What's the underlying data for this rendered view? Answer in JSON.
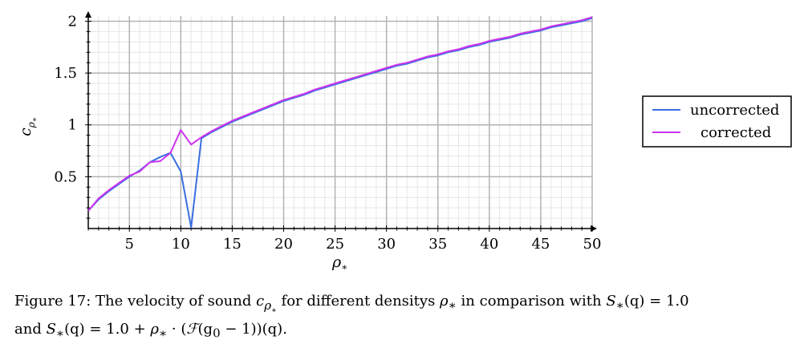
{
  "chart_data": {
    "type": "line",
    "xlabel_symbol": "ρ",
    "xlabel_sub": "∗",
    "ylabel_symbol": "c",
    "ylabel_sub1": "ρ",
    "ylabel_sub2": "∗",
    "xlim": [
      1,
      50
    ],
    "ylim": [
      0,
      2.05
    ],
    "xticks": [
      5,
      10,
      15,
      20,
      25,
      30,
      35,
      40,
      45,
      50
    ],
    "xtick_labels": [
      "5",
      "10",
      "15",
      "20",
      "25",
      "30",
      "35",
      "40",
      "45",
      "50"
    ],
    "yticks": [
      0.5,
      1,
      1.5,
      2
    ],
    "ytick_labels": [
      "0.5",
      "1",
      "1.5",
      "2"
    ],
    "grid": true,
    "legend_position": "right",
    "series": [
      {
        "name": "uncorrected",
        "color": "#3a6fe0",
        "x": [
          1,
          2,
          3,
          4,
          5,
          6,
          7,
          8,
          9,
          10,
          11,
          12,
          13,
          14,
          15,
          16,
          17,
          18,
          19,
          20,
          21,
          22,
          23,
          24,
          25,
          26,
          27,
          28,
          29,
          30,
          31,
          32,
          33,
          34,
          35,
          36,
          37,
          38,
          39,
          40,
          41,
          42,
          43,
          44,
          45,
          46,
          47,
          48,
          49,
          50
        ],
        "y": [
          0.17,
          0.28,
          0.36,
          0.43,
          0.5,
          0.56,
          0.64,
          0.69,
          0.73,
          0.55,
          0.01,
          0.87,
          0.93,
          0.98,
          1.03,
          1.07,
          1.11,
          1.15,
          1.19,
          1.23,
          1.26,
          1.29,
          1.33,
          1.36,
          1.39,
          1.42,
          1.45,
          1.48,
          1.51,
          1.54,
          1.57,
          1.59,
          1.62,
          1.65,
          1.67,
          1.7,
          1.72,
          1.75,
          1.77,
          1.8,
          1.82,
          1.84,
          1.87,
          1.89,
          1.91,
          1.94,
          1.96,
          1.98,
          2.0,
          2.03
        ]
      },
      {
        "name": "corrected",
        "color": "#cc33ee",
        "x": [
          1,
          2,
          3,
          4,
          5,
          6,
          7,
          8,
          9,
          10,
          11,
          12,
          13,
          14,
          15,
          16,
          17,
          18,
          19,
          20,
          21,
          22,
          23,
          24,
          25,
          26,
          27,
          28,
          29,
          30,
          31,
          32,
          33,
          34,
          35,
          36,
          37,
          38,
          39,
          40,
          41,
          42,
          43,
          44,
          45,
          46,
          47,
          48,
          49,
          50
        ],
        "y": [
          0.17,
          0.29,
          0.37,
          0.44,
          0.51,
          0.55,
          0.64,
          0.65,
          0.73,
          0.95,
          0.81,
          0.88,
          0.94,
          0.99,
          1.04,
          1.08,
          1.12,
          1.16,
          1.2,
          1.24,
          1.27,
          1.3,
          1.34,
          1.37,
          1.4,
          1.43,
          1.46,
          1.49,
          1.52,
          1.55,
          1.58,
          1.6,
          1.63,
          1.66,
          1.68,
          1.71,
          1.73,
          1.76,
          1.78,
          1.81,
          1.83,
          1.85,
          1.88,
          1.9,
          1.92,
          1.95,
          1.97,
          1.99,
          2.01,
          2.04
        ]
      }
    ]
  },
  "caption": {
    "line1_prefix": "Figure 17: The velocity of sound ",
    "line1_c": "c",
    "line1_c_sub": "ρ",
    "line1_c_subsub": "∗",
    "line1_mid": " for different densitys ",
    "line1_rho": "ρ",
    "line1_rho_sub": "∗",
    "line1_mid2": " in comparison with ",
    "line1_S": "S",
    "line1_S_sub": "∗",
    "line1_eq": "(q) = 1.0",
    "line2_prefix": "and ",
    "line2_S": "S",
    "line2_S_sub": "∗",
    "line2_eq1": "(q) = 1.0 + ",
    "line2_rho": "ρ",
    "line2_rho_sub": "∗",
    "line2_eq2": " · (",
    "line2_F": "ℱ",
    "line2_eq3": "(g",
    "line2_g_sub": "0",
    "line2_eq4": " − 1))(q)."
  }
}
